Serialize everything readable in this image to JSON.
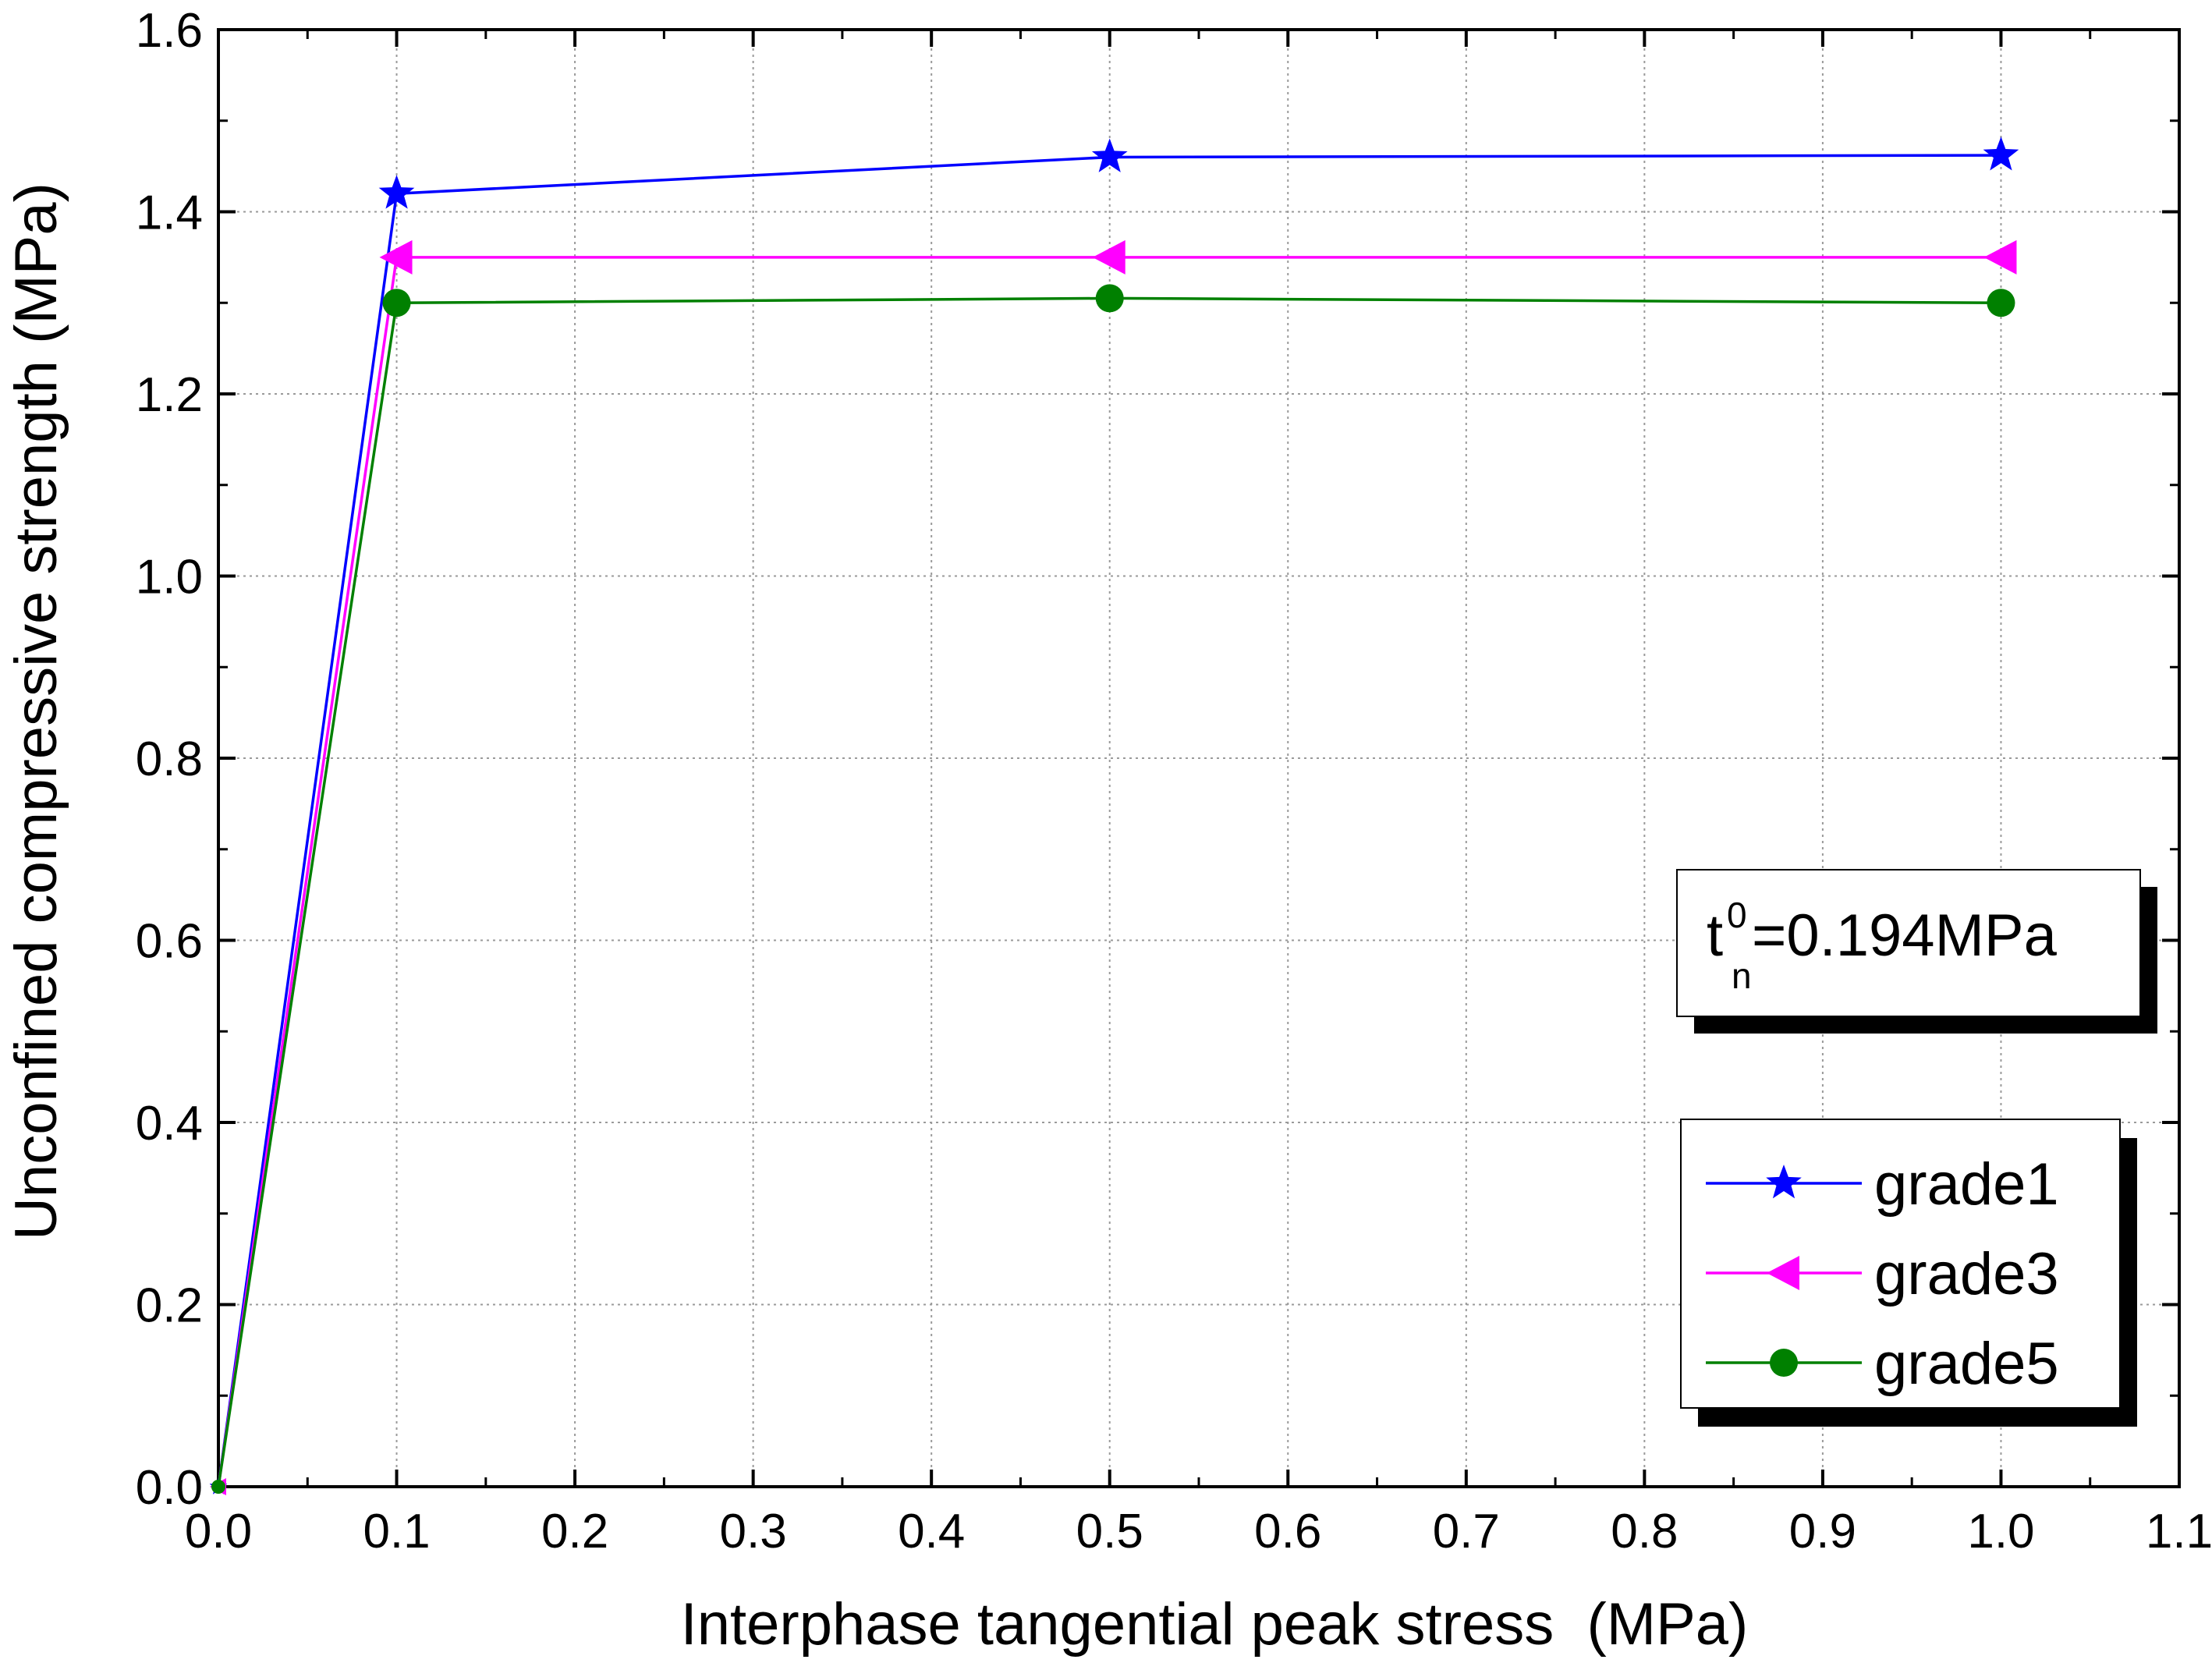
{
  "chart_data": {
    "type": "line",
    "title": "",
    "xlabel": "Interphase tangential peak stress  (MPa)",
    "ylabel": "Unconfined compressive strength (MPa)",
    "xlim": [
      0.0,
      1.1
    ],
    "ylim": [
      0.0,
      1.6
    ],
    "x_ticks": [
      "0.0",
      "0.1",
      "0.2",
      "0.3",
      "0.4",
      "0.5",
      "0.6",
      "0.7",
      "0.8",
      "0.9",
      "1.0",
      "1.1"
    ],
    "y_ticks": [
      "0.0",
      "0.2",
      "0.4",
      "0.6",
      "0.8",
      "1.0",
      "1.2",
      "1.4",
      "1.6"
    ],
    "grid": true,
    "legend_position": "bottom-right",
    "annotation": {
      "base": "t",
      "superscript": "0",
      "subscript": "n",
      "rest": "=0.194MPa"
    },
    "series": [
      {
        "name": "grade1",
        "color": "#0000ff",
        "marker": "star",
        "x": [
          0.0,
          0.1,
          0.5,
          1.0
        ],
        "y": [
          0.0,
          1.42,
          1.46,
          1.462
        ]
      },
      {
        "name": "grade3",
        "color": "#ff00ff",
        "marker": "triangle-left",
        "x": [
          0.0,
          0.1,
          0.5,
          1.0
        ],
        "y": [
          0.0,
          1.35,
          1.35,
          1.35
        ]
      },
      {
        "name": "grade5",
        "color": "#008000",
        "marker": "circle",
        "x": [
          0.0,
          0.1,
          0.5,
          1.0
        ],
        "y": [
          0.0,
          1.3,
          1.305,
          1.3
        ]
      }
    ]
  }
}
